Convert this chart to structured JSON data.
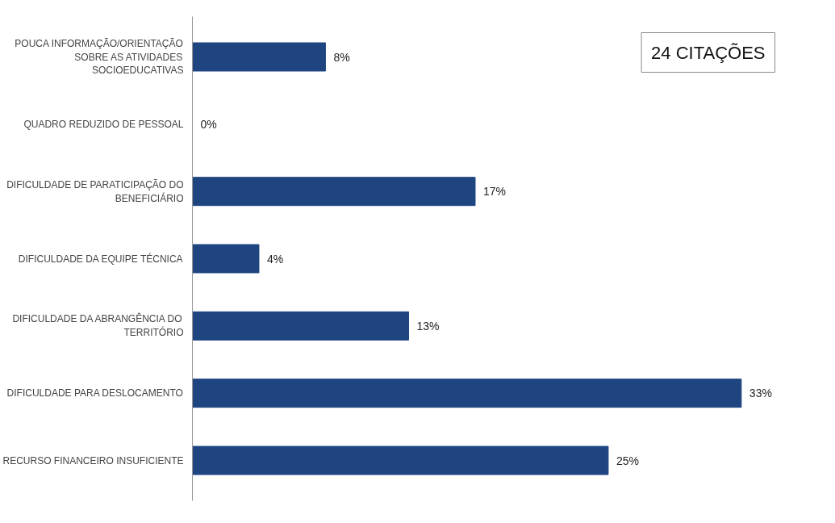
{
  "chart_data": {
    "type": "bar",
    "orientation": "horizontal",
    "categories": [
      "POUCA INFORMAÇÃO/ORIENTAÇÃO SOBRE AS ATIVIDADES SOCIOEDUCATIVAS",
      "QUADRO REDUZIDO DE PESSOAL",
      "DIFICULDADE DE PARATICIPAÇÃO DO BENEFICIÁRIO",
      "DIFICULDADE DA EQUIPE TÉCNICA",
      "DIFICULDADE DA ABRANGÊNCIA DO TERRITÓRIO",
      "DIFICULDADE PARA DESLOCAMENTO",
      "RECURSO FINANCEIRO INSUFICIENTE"
    ],
    "values": [
      8,
      0,
      17,
      4,
      13,
      33,
      25
    ],
    "value_labels": [
      "8%",
      "0%",
      "17%",
      "4%",
      "13%",
      "33%",
      "25%"
    ],
    "color": "#1f4581",
    "annotations": [
      "24 CITAÇÕES"
    ],
    "grid": false
  }
}
